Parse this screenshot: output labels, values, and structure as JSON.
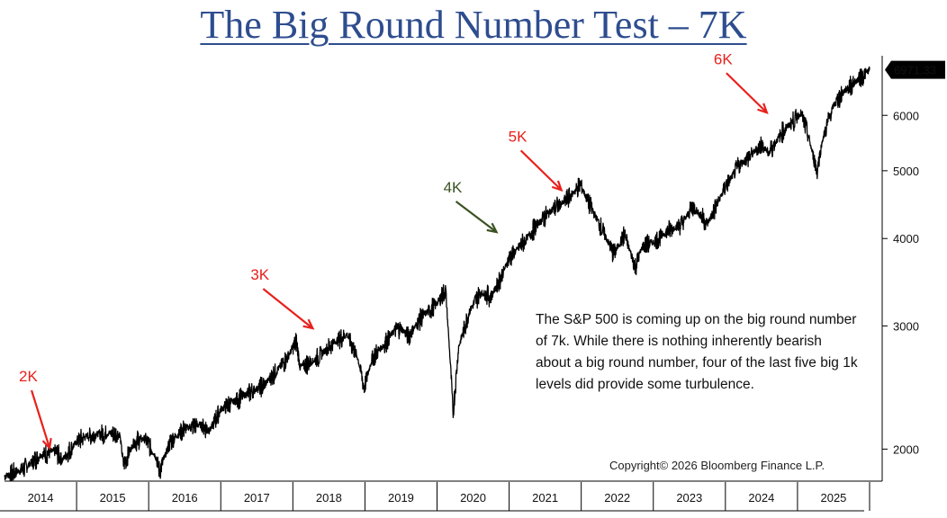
{
  "title": "The Big Round Number Test – 7K",
  "note": "The S&P 500 is coming up on the big round number of 7k. While there is nothing inherently bearish about a big round number, four of the last five big 1k levels did provide some turbulence.",
  "copyright": "Copyright© 2026 Bloomberg Finance L.P.",
  "chart_data": {
    "type": "line",
    "yscale": "log",
    "ylim": [
      1800,
      7300
    ],
    "xlim": [
      2014.0,
      2026.05
    ],
    "y_ticks": [
      2000,
      3000,
      4000,
      5000,
      6000
    ],
    "x_years": [
      "2014",
      "2015",
      "2016",
      "2017",
      "2018",
      "2019",
      "2020",
      "2021",
      "2022",
      "2023",
      "2024",
      "2025"
    ],
    "last_value_label": "6971.33",
    "last_value": 6971.33,
    "line_color": "#000000",
    "series": [
      {
        "x": [
          2014.0,
          2014.25,
          2014.5,
          2014.7,
          2014.8,
          2015.0,
          2015.15,
          2015.4,
          2015.6,
          2015.65,
          2015.8,
          2015.95,
          2016.1,
          2016.15,
          2016.3,
          2016.5,
          2016.7,
          2016.85,
          2017.0,
          2017.3,
          2017.6,
          2017.9,
          2018.05,
          2018.1,
          2018.3,
          2018.55,
          2018.75,
          2018.9,
          2018.99,
          2019.1,
          2019.3,
          2019.4,
          2019.5,
          2019.6,
          2019.8,
          2020.0,
          2020.12,
          2020.2,
          2020.22,
          2020.3,
          2020.45,
          2020.6,
          2020.75,
          2020.9,
          2021.0,
          2021.2,
          2021.4,
          2021.6,
          2021.75,
          2021.85,
          2021.99,
          2022.1,
          2022.2,
          2022.35,
          2022.45,
          2022.6,
          2022.75,
          2022.85,
          2023.0,
          2023.2,
          2023.4,
          2023.55,
          2023.75,
          2023.85,
          2024.0,
          2024.2,
          2024.3,
          2024.5,
          2024.6,
          2024.8,
          2024.95,
          2025.05,
          2025.15,
          2025.27,
          2025.35,
          2025.5,
          2025.65,
          2025.8,
          2025.95,
          2026.0
        ],
        "y": [
          1830,
          1870,
          1960,
          1990,
          1930,
          2050,
          2090,
          2110,
          2100,
          1900,
          2050,
          2070,
          1950,
          1860,
          2050,
          2140,
          2170,
          2130,
          2280,
          2380,
          2470,
          2680,
          2850,
          2620,
          2680,
          2830,
          2920,
          2700,
          2450,
          2700,
          2850,
          2950,
          2980,
          2900,
          3100,
          3230,
          3380,
          2500,
          2240,
          2800,
          3150,
          3350,
          3300,
          3550,
          3750,
          3950,
          4200,
          4400,
          4500,
          4600,
          4780,
          4500,
          4300,
          4000,
          3800,
          4050,
          3650,
          3900,
          3950,
          4100,
          4200,
          4450,
          4200,
          4400,
          4750,
          5100,
          5200,
          5450,
          5300,
          5700,
          5900,
          6050,
          5600,
          5000,
          5550,
          6200,
          6500,
          6700,
          6900,
          6971.33
        ]
      }
    ],
    "annotations": [
      {
        "label": "2K",
        "x": 2014.65,
        "y": 1990,
        "color": "#e8201c"
      },
      {
        "label": "3K",
        "x": 2018.3,
        "y": 2950,
        "color": "#e8201c"
      },
      {
        "label": "4K",
        "x": 2020.85,
        "y": 4050,
        "color": "#3b5323"
      },
      {
        "label": "5K",
        "x": 2021.75,
        "y": 4650,
        "color": "#e8201c"
      },
      {
        "label": "6K",
        "x": 2024.6,
        "y": 6000,
        "color": "#e8201c"
      }
    ]
  }
}
